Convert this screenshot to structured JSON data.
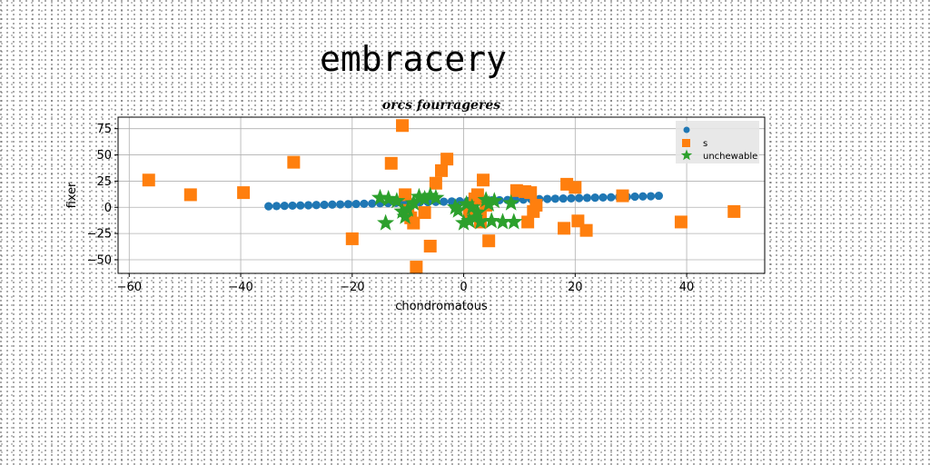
{
  "page_title": "embracery",
  "chart_data": {
    "type": "scatter",
    "title": "orcs fourrageres",
    "xlabel": "chondromatous",
    "ylabel": "fixer",
    "xlim": [
      -62,
      54
    ],
    "ylim": [
      -63,
      86
    ],
    "xticks": [
      -60,
      -40,
      -20,
      0,
      20,
      40
    ],
    "yticks": [
      -50,
      -25,
      0,
      25,
      50,
      75
    ],
    "grid": true,
    "legend_position": "top-right",
    "series": [
      {
        "name": "",
        "marker": "circle",
        "color": "#1f77b4",
        "x": [
          -35,
          -33.57,
          -32.14,
          -30.71,
          -29.29,
          -27.86,
          -26.43,
          -25,
          -23.57,
          -22.14,
          -20.71,
          -19.29,
          -17.86,
          -16.43,
          -15,
          -13.57,
          -12.14,
          -10.71,
          -9.29,
          -7.86,
          -6.43,
          -5,
          -3.57,
          -2.14,
          -0.71,
          0.71,
          2.14,
          3.57,
          5,
          6.43,
          7.86,
          9.29,
          10.71,
          12.14,
          13.57,
          15,
          16.43,
          17.86,
          19.29,
          20.71,
          22.14,
          23.57,
          25,
          26.43,
          27.86,
          29.29,
          30.71,
          32.14,
          33.57,
          35
        ],
        "y": [
          1,
          1.2,
          1.4,
          1.6,
          1.8,
          2,
          2.2,
          2.4,
          2.6,
          2.8,
          3,
          3.2,
          3.4,
          3.6,
          3.8,
          4,
          4.2,
          4.4,
          4.6,
          4.8,
          5,
          5.2,
          5.4,
          5.6,
          5.8,
          6,
          6.2,
          6.4,
          6.6,
          6.8,
          7,
          7.2,
          7.4,
          7.6,
          7.8,
          8,
          8.2,
          8.4,
          8.6,
          8.8,
          9,
          9.2,
          9.4,
          9.6,
          9.8,
          10,
          10.2,
          10.4,
          10.6,
          11
        ]
      },
      {
        "name": "s",
        "marker": "square",
        "color": "#ff7f0e",
        "x": [
          -56.5,
          -49,
          -39.5,
          -30.5,
          -20,
          -13,
          -11,
          -10.5,
          -10,
          -9.5,
          -9,
          -8.5,
          -7,
          -6,
          -5,
          -4,
          -3,
          1,
          2,
          2.5,
          3,
          3,
          3.5,
          4,
          4.5,
          9.5,
          11,
          11.5,
          12,
          12.5,
          13,
          18,
          18.5,
          20,
          20.5,
          22,
          28.5,
          39,
          48.5
        ],
        "y": [
          26,
          12,
          14,
          43,
          -30,
          42,
          78,
          12,
          -3,
          -10,
          -15,
          -57,
          -5,
          -37,
          23,
          35,
          46,
          -5,
          8,
          12,
          -10,
          -14,
          26,
          2,
          -32,
          16,
          15,
          -14,
          14,
          -4,
          2,
          -20,
          22,
          19,
          -13,
          -22,
          11,
          -14,
          -4
        ]
      },
      {
        "name": "unchewable",
        "marker": "star",
        "color": "#2ca02c",
        "x": [
          -15,
          -14,
          -13.5,
          -12,
          -11,
          -10.5,
          -10,
          -9,
          -8,
          -7,
          -6,
          -5,
          -1.5,
          -1,
          0,
          0.5,
          1,
          1.5,
          2,
          2.5,
          3,
          4,
          4.5,
          5,
          5.5,
          7,
          8.5,
          9
        ],
        "y": [
          9,
          -15,
          8,
          6,
          -4,
          -9,
          -2,
          4,
          10,
          8,
          11,
          9,
          0,
          -3,
          -15,
          3,
          -13,
          0,
          -10,
          -5,
          -14,
          7,
          3,
          -13,
          6,
          -14,
          4,
          -14
        ]
      }
    ]
  }
}
